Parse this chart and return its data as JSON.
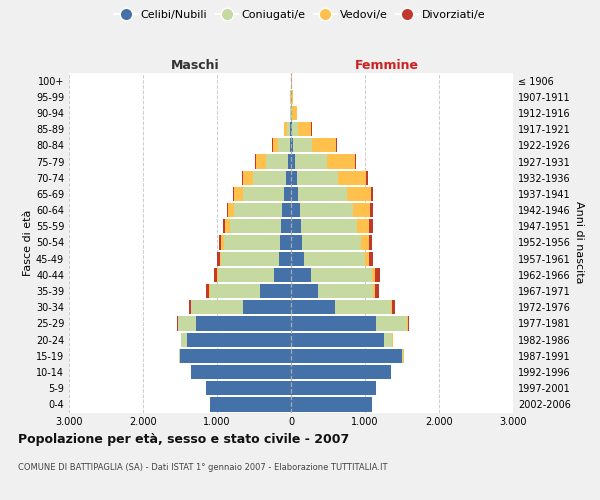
{
  "age_groups": [
    "0-4",
    "5-9",
    "10-14",
    "15-19",
    "20-24",
    "25-29",
    "30-34",
    "35-39",
    "40-44",
    "45-49",
    "50-54",
    "55-59",
    "60-64",
    "65-69",
    "70-74",
    "75-79",
    "80-84",
    "85-89",
    "90-94",
    "95-99",
    "100+"
  ],
  "birth_years": [
    "2002-2006",
    "1997-2001",
    "1992-1996",
    "1987-1991",
    "1982-1986",
    "1977-1981",
    "1972-1976",
    "1967-1971",
    "1962-1966",
    "1957-1961",
    "1952-1956",
    "1947-1951",
    "1942-1946",
    "1937-1941",
    "1932-1936",
    "1927-1931",
    "1922-1926",
    "1917-1921",
    "1912-1916",
    "1907-1911",
    "≤ 1906"
  ],
  "male": {
    "celibe": [
      1100,
      1150,
      1350,
      1500,
      1400,
      1280,
      650,
      420,
      230,
      160,
      150,
      130,
      120,
      100,
      70,
      40,
      20,
      10,
      5,
      2,
      2
    ],
    "coniugato": [
      0,
      0,
      2,
      10,
      80,
      250,
      700,
      680,
      760,
      780,
      750,
      700,
      650,
      550,
      450,
      300,
      150,
      50,
      10,
      3,
      2
    ],
    "vedovo": [
      0,
      0,
      0,
      0,
      2,
      3,
      5,
      10,
      15,
      20,
      40,
      60,
      80,
      120,
      130,
      130,
      80,
      30,
      5,
      2,
      0
    ],
    "divorziato": [
      0,
      0,
      0,
      2,
      5,
      10,
      25,
      35,
      40,
      35,
      30,
      30,
      20,
      15,
      10,
      10,
      5,
      2,
      0,
      0,
      0
    ]
  },
  "female": {
    "nubile": [
      1100,
      1150,
      1350,
      1500,
      1250,
      1150,
      600,
      360,
      270,
      180,
      150,
      140,
      120,
      100,
      80,
      50,
      30,
      15,
      5,
      2,
      2
    ],
    "coniugata": [
      0,
      0,
      3,
      20,
      120,
      420,
      750,
      750,
      830,
      820,
      800,
      750,
      720,
      650,
      560,
      430,
      250,
      80,
      15,
      5,
      3
    ],
    "vedova": [
      0,
      0,
      0,
      2,
      3,
      5,
      10,
      20,
      30,
      50,
      100,
      160,
      230,
      330,
      380,
      380,
      330,
      180,
      60,
      15,
      5
    ],
    "divorziata": [
      0,
      0,
      0,
      2,
      5,
      15,
      40,
      55,
      70,
      60,
      50,
      60,
      35,
      25,
      20,
      15,
      10,
      5,
      1,
      0,
      0
    ]
  },
  "colors": {
    "celibe": "#4472a8",
    "coniugato": "#c5d9a0",
    "vedovo": "#ffc04c",
    "divorziato": "#c0392b"
  },
  "xlim": 3000,
  "title": "Popolazione per età, sesso e stato civile - 2007",
  "subtitle": "COMUNE DI BATTIPAGLIA (SA) - Dati ISTAT 1° gennaio 2007 - Elaborazione TUTTITALIA.IT",
  "xlabel_left": "Maschi",
  "xlabel_right": "Femmine",
  "ylabel_left": "Fasce di età",
  "ylabel_right": "Anni di nascita",
  "bg_color": "#f0f0f0",
  "plot_bg_color": "#ffffff",
  "legend_labels": [
    "Celibi/Nubili",
    "Coniugati/e",
    "Vedovi/e",
    "Divorziati/e"
  ]
}
